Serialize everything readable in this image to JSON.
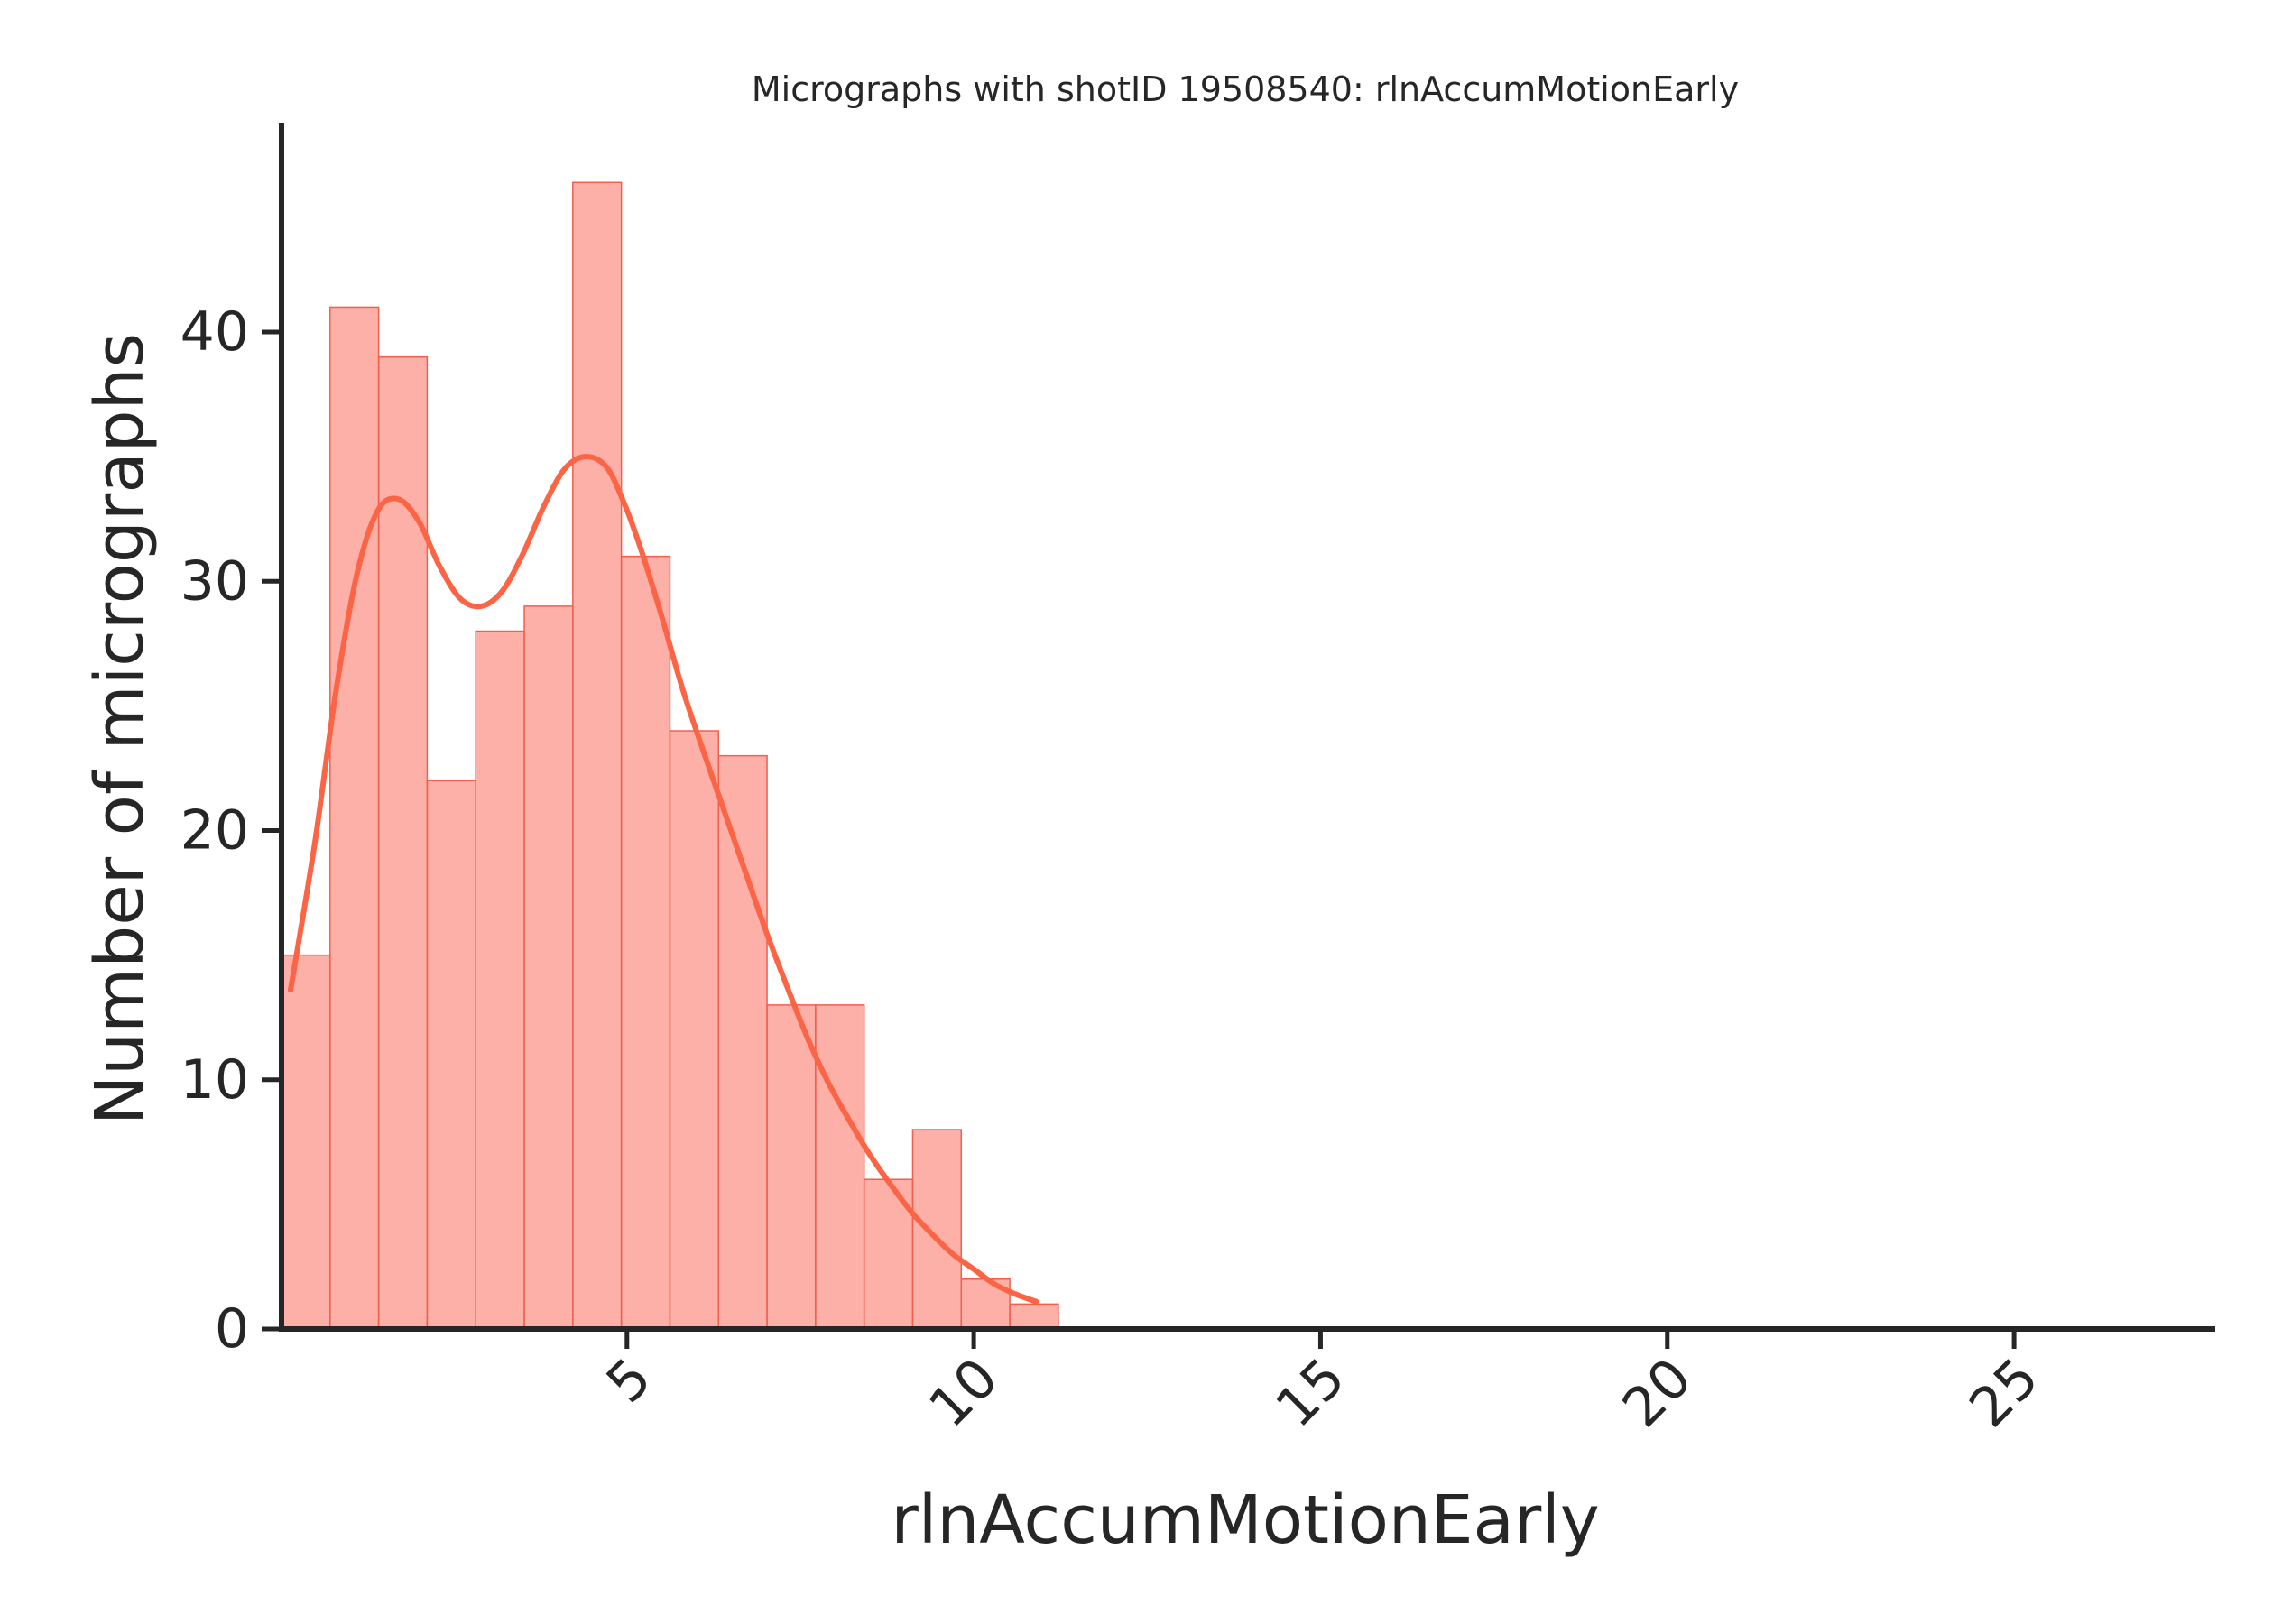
{
  "chart_data": {
    "type": "bar",
    "subtype": "histogram",
    "title": "Micrographs with shotID 19508540: rlnAccumMotionEarly",
    "xlabel": "rlnAccumMotionEarly",
    "ylabel": "Number of micrographs",
    "xlim": [
      0.02,
      27.9
    ],
    "ylim": [
      0,
      48.4
    ],
    "xticks": [
      5,
      10,
      15,
      20,
      25
    ],
    "xtick_labels": [
      "5",
      "10",
      "15",
      "20",
      "25"
    ],
    "yticks": [
      0,
      10,
      20,
      30,
      40
    ],
    "ytick_labels": [
      "0",
      "10",
      "20",
      "30",
      "40"
    ],
    "grid": false,
    "bins": {
      "edges": [
        0.02,
        0.72,
        1.42,
        2.12,
        2.82,
        3.52,
        4.22,
        4.92,
        5.62,
        6.32,
        7.02,
        7.72,
        8.42,
        9.12,
        9.82,
        10.52,
        11.22
      ],
      "counts": [
        15,
        41,
        39,
        22,
        28,
        29,
        46,
        31,
        24,
        23,
        13,
        13,
        6,
        8,
        2,
        1
      ]
    },
    "kde": {
      "x": [
        0.15,
        0.5,
        0.8,
        1.1,
        1.4,
        1.7,
        2.0,
        2.3,
        2.6,
        2.9,
        3.2,
        3.5,
        3.8,
        4.1,
        4.4,
        4.7,
        4.95,
        5.2,
        5.5,
        5.8,
        6.1,
        6.4,
        6.7,
        7.0,
        7.3,
        7.6,
        7.9,
        8.2,
        8.5,
        8.8,
        9.1,
        9.4,
        9.7,
        10.0,
        10.3,
        10.6,
        10.9
      ],
      "y": [
        13.6,
        19.5,
        25.5,
        30.2,
        32.8,
        33.3,
        32.4,
        30.6,
        29.3,
        29.0,
        29.6,
        31.1,
        33.0,
        34.5,
        35.0,
        34.6,
        33.2,
        31.3,
        28.6,
        25.7,
        23.2,
        20.8,
        18.4,
        16.0,
        13.8,
        11.7,
        9.9,
        8.4,
        7.0,
        5.8,
        4.7,
        3.8,
        3.0,
        2.4,
        1.8,
        1.4,
        1.1
      ]
    },
    "colors": {
      "bar_fill": "#fa8072",
      "bar_fill_opacity": 0.62,
      "bar_edge": "#f0604d",
      "kde_line": "#fb6445",
      "axis": "#262626"
    }
  }
}
